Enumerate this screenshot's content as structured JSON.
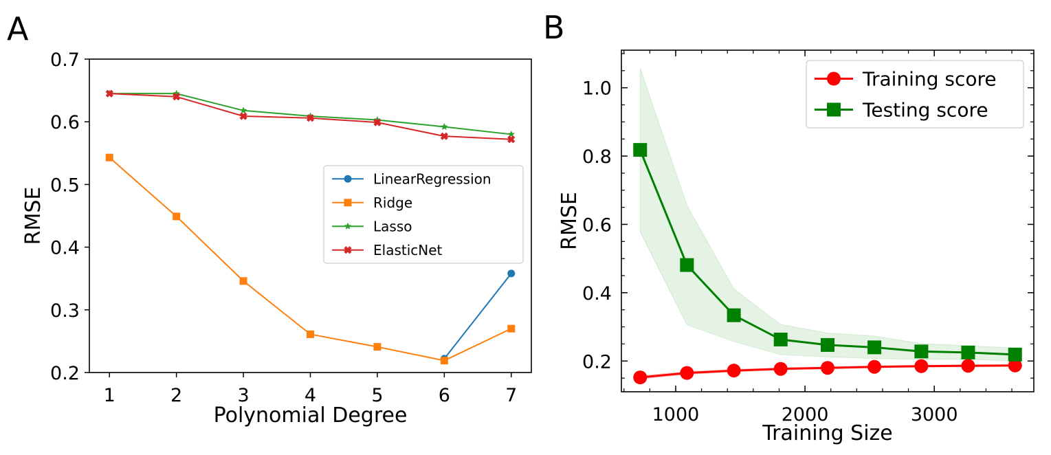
{
  "panels": {
    "a": {
      "letter": "A"
    },
    "b": {
      "letter": "B"
    }
  },
  "chart_data": [
    {
      "type": "line",
      "panel": "A",
      "xlabel": "Polynomial Degree",
      "ylabel": "RMSE",
      "x": [
        1,
        2,
        3,
        4,
        5,
        6,
        7
      ],
      "xlim": [
        0.7,
        7.3
      ],
      "ylim": [
        0.2,
        0.7
      ],
      "xticks": [
        "1",
        "2",
        "3",
        "4",
        "5",
        "6",
        "7"
      ],
      "yticks": [
        "0.2",
        "0.3",
        "0.4",
        "0.5",
        "0.6",
        "0.7"
      ],
      "legend_position": "center-right",
      "grid": false,
      "series": [
        {
          "name": "LinearRegression",
          "color": "#1f77b4",
          "marker": "circle",
          "values": [
            null,
            null,
            null,
            null,
            null,
            0.222,
            0.358
          ]
        },
        {
          "name": "Ridge",
          "color": "#ff7f0e",
          "marker": "square",
          "values": [
            0.543,
            0.449,
            0.346,
            0.261,
            0.241,
            0.219,
            0.27
          ]
        },
        {
          "name": "Lasso",
          "color": "#2ca02c",
          "marker": "star",
          "values": [
            0.645,
            0.645,
            0.618,
            0.609,
            0.603,
            0.592,
            0.58
          ]
        },
        {
          "name": "ElasticNet",
          "color": "#d62728",
          "marker": "x",
          "values": [
            0.645,
            0.64,
            0.609,
            0.606,
            0.599,
            0.577,
            0.572
          ]
        }
      ]
    },
    {
      "type": "line",
      "panel": "B",
      "xlabel": "Training Size",
      "ylabel": "RMSE",
      "x": [
        725,
        1087,
        1450,
        1812,
        2175,
        2537,
        2900,
        3262,
        3625
      ],
      "xlim": [
        580,
        3770
      ],
      "ylim": [
        0.11,
        1.11
      ],
      "xticks": [
        "1000",
        "2000",
        "3000"
      ],
      "yticks": [
        "0.2",
        "0.4",
        "0.6",
        "0.8",
        "1.0"
      ],
      "legend_position": "top-right",
      "grid": false,
      "series": [
        {
          "name": "Training score",
          "color": "#ff0000",
          "marker": "circle",
          "values": [
            0.152,
            0.165,
            0.172,
            0.177,
            0.18,
            0.183,
            0.185,
            0.186,
            0.187
          ],
          "band_lower": [
            0.147,
            0.161,
            0.168,
            0.174,
            0.177,
            0.18,
            0.182,
            0.183,
            0.184
          ],
          "band_upper": [
            0.157,
            0.169,
            0.176,
            0.18,
            0.183,
            0.186,
            0.188,
            0.189,
            0.19
          ]
        },
        {
          "name": "Testing score",
          "color": "#008000",
          "marker": "square",
          "band_color": "#2ca02c",
          "values": [
            0.818,
            0.481,
            0.334,
            0.263,
            0.247,
            0.24,
            0.228,
            0.225,
            0.219
          ],
          "band_lower": [
            0.578,
            0.306,
            0.257,
            0.219,
            0.212,
            0.207,
            0.205,
            0.205,
            0.2
          ],
          "band_upper": [
            1.058,
            0.656,
            0.411,
            0.307,
            0.282,
            0.273,
            0.251,
            0.245,
            0.238
          ]
        }
      ]
    }
  ]
}
